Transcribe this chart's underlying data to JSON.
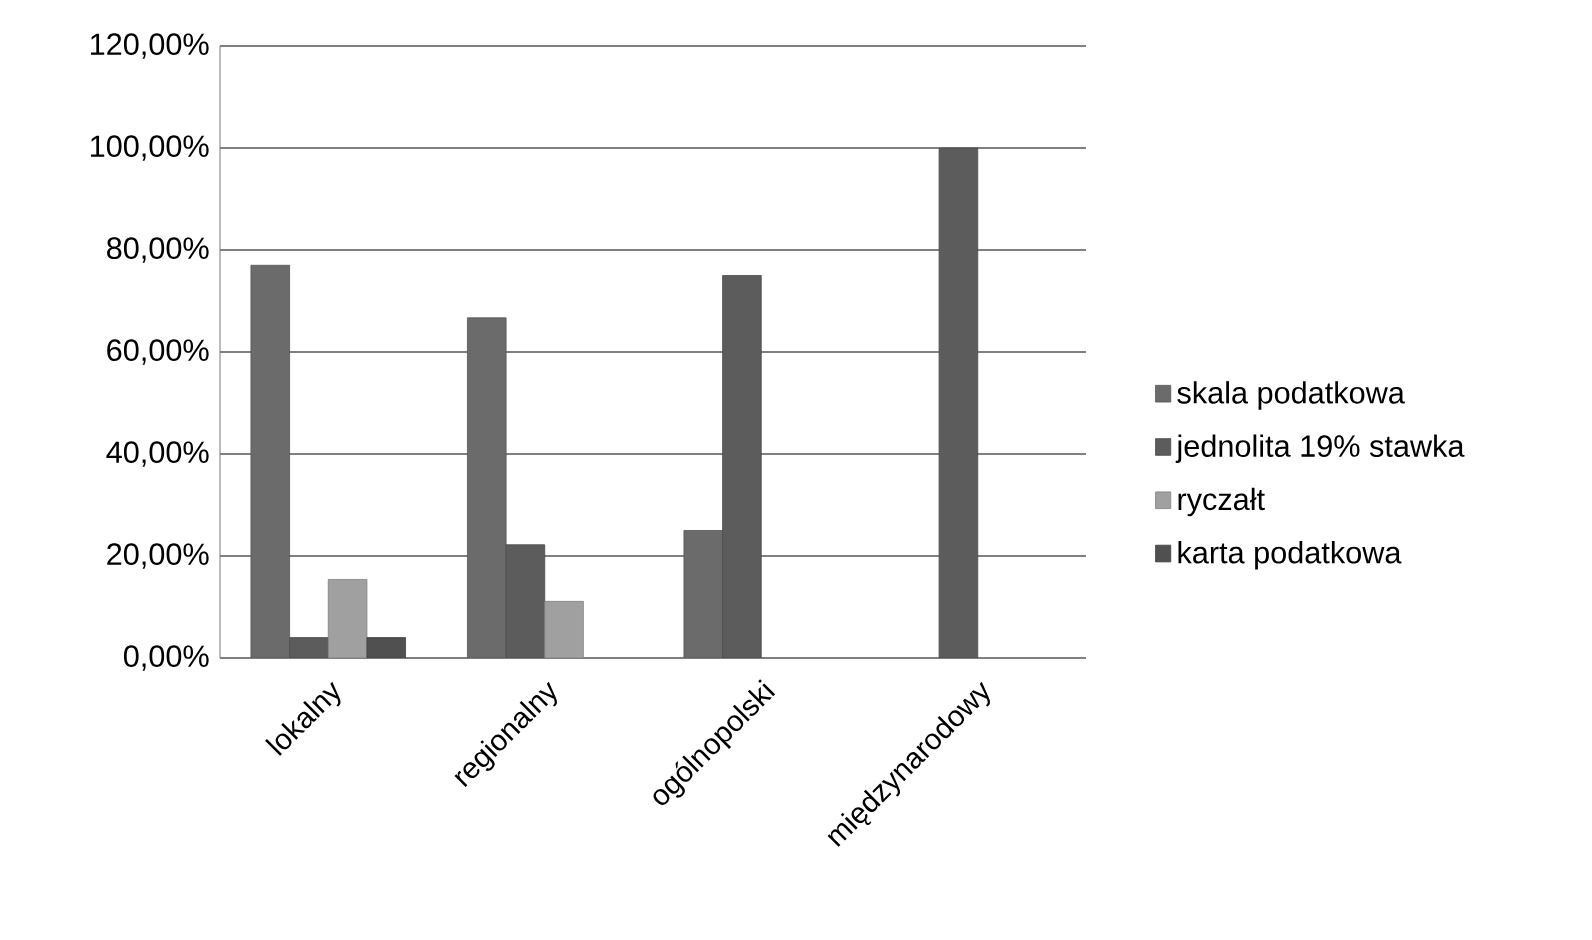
{
  "chart_data": {
    "type": "bar",
    "categories": [
      "lokalny",
      "regionalny",
      "ogólnopolski",
      "międzynarodowy"
    ],
    "series": [
      {
        "name": "skala podatkowa",
        "color": "#6b6b6b",
        "values": [
          77,
          66.7,
          25,
          null
        ]
      },
      {
        "name": "jednolita 19% stawka",
        "color": "#5c5c5c",
        "values": [
          4,
          22.2,
          75,
          100
        ]
      },
      {
        "name": "ryczałt",
        "color": "#a0a0a0",
        "values": [
          15.4,
          11.1,
          null,
          null
        ]
      },
      {
        "name": "karta podatkowa",
        "color": "#505050",
        "values": [
          4,
          null,
          null,
          null
        ]
      }
    ],
    "ylim": [
      0,
      120
    ],
    "yticks": [
      {
        "value": 0,
        "label": "0,00%"
      },
      {
        "value": 20,
        "label": "20,00%"
      },
      {
        "value": 40,
        "label": "40,00%"
      },
      {
        "value": 60,
        "label": "60,00%"
      },
      {
        "value": 80,
        "label": "80,00%"
      },
      {
        "value": 100,
        "label": "100,00%"
      },
      {
        "value": 120,
        "label": "120,00%"
      }
    ],
    "grid": "y",
    "legend": "right"
  }
}
